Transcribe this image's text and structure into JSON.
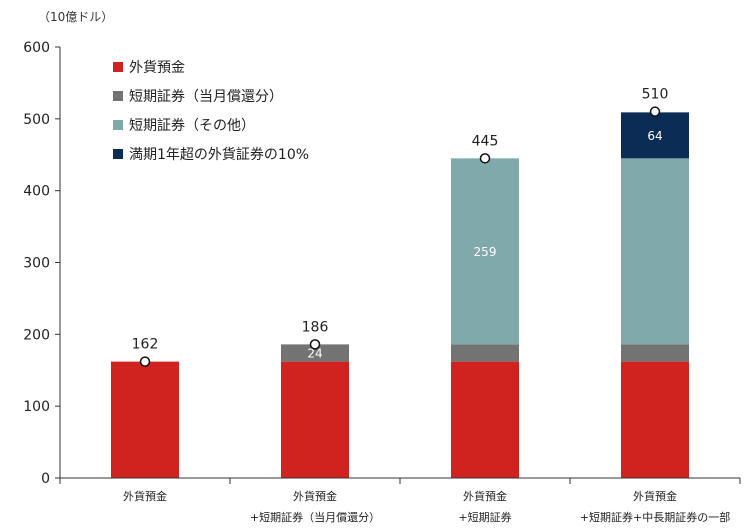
{
  "chart_data": {
    "type": "bar",
    "stacked": true,
    "unit_label": "（10億ドル）",
    "ylim": [
      0,
      600
    ],
    "yticks": [
      0,
      100,
      200,
      300,
      400,
      500,
      600
    ],
    "categories": [
      [
        "外貨預金"
      ],
      [
        "外貨預金",
        "+短期証券（当月償還分）"
      ],
      [
        "外貨預金",
        "+短期証券"
      ],
      [
        "外貨預金",
        "+短期証券+中長期証券の一部"
      ]
    ],
    "series": [
      {
        "name": "外貨預金",
        "color": "#d0221f",
        "values": [
          162,
          162,
          162,
          162
        ]
      },
      {
        "name": "短期証券（当月償還分）",
        "color": "#737373",
        "values": [
          0,
          24,
          24,
          24
        ]
      },
      {
        "name": "短期証券（その他）",
        "color": "#7fa9ab",
        "values": [
          0,
          0,
          259,
          259
        ]
      },
      {
        "name": "満期1年超の外貨証券の10%",
        "color": "#0b2c55",
        "values": [
          0,
          0,
          0,
          64
        ]
      }
    ],
    "segment_labels": [
      {
        "category": 1,
        "series": 1,
        "text": "24"
      },
      {
        "category": 2,
        "series": 2,
        "text": "259"
      },
      {
        "category": 3,
        "series": 3,
        "text": "64"
      }
    ],
    "totals": [
      162,
      186,
      445,
      510
    ],
    "legend_position": "top-left"
  }
}
